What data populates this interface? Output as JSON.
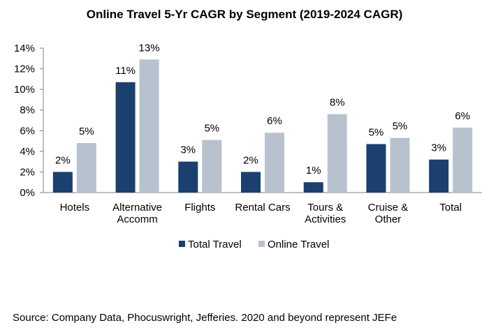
{
  "chart_data": {
    "type": "bar",
    "title": "Online Travel 5-Yr CAGR by Segment (2019-2024 CAGR)",
    "categories": [
      [
        "Hotels"
      ],
      [
        "Alternative",
        "Accomm"
      ],
      [
        "Flights"
      ],
      [
        "Rental Cars"
      ],
      [
        "Tours &",
        "Activities"
      ],
      [
        "Cruise &",
        "Other"
      ],
      [
        "Total"
      ]
    ],
    "series": [
      {
        "name": "Total Travel",
        "color": "#1b3f6e",
        "values": [
          2.0,
          10.7,
          3.0,
          2.0,
          1.0,
          4.7,
          3.2
        ],
        "labels": [
          "2%",
          "11%",
          "3%",
          "2%",
          "1%",
          "5%",
          "3%"
        ]
      },
      {
        "name": "Online Travel",
        "color": "#b8c2ce",
        "values": [
          4.8,
          12.9,
          5.1,
          5.8,
          7.6,
          5.3,
          6.3
        ],
        "labels": [
          "5%",
          "13%",
          "5%",
          "6%",
          "8%",
          "5%",
          "6%"
        ]
      }
    ],
    "ylim": [
      0,
      14
    ],
    "yticks": [
      0,
      2,
      4,
      6,
      8,
      10,
      12,
      14
    ],
    "ytick_labels": [
      "0%",
      "2%",
      "4%",
      "6%",
      "8%",
      "10%",
      "12%",
      "14%"
    ],
    "xlabel": "",
    "ylabel": "",
    "grid": false,
    "legend_position": "bottom-center"
  },
  "footer": {
    "source": "Source: Company Data, Phocuswright, Jefferies. 2020 and beyond represent JEFe"
  }
}
